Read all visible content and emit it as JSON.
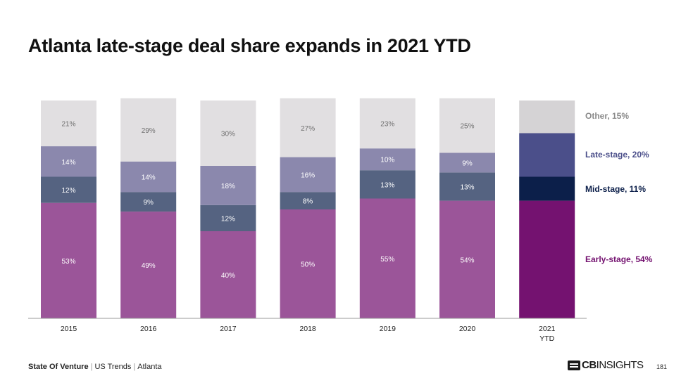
{
  "title": "Atlanta late-stage deal share expands in 2021 YTD",
  "chart_data": {
    "type": "bar",
    "stacked": true,
    "percent": true,
    "categories": [
      [
        "2015"
      ],
      [
        "2016"
      ],
      [
        "2017"
      ],
      [
        "2018"
      ],
      [
        "2019"
      ],
      [
        "2020"
      ],
      [
        "2021",
        "YTD"
      ]
    ],
    "series": [
      {
        "name": "Early-stage",
        "values": [
          53,
          49,
          40,
          50,
          55,
          54,
          54
        ],
        "color": "#9b5599",
        "highlight_color": "#741270"
      },
      {
        "name": "Mid-stage",
        "values": [
          12,
          9,
          12,
          8,
          13,
          13,
          11
        ],
        "color": "#556381",
        "highlight_color": "#0c1f4a"
      },
      {
        "name": "Late-stage",
        "values": [
          14,
          14,
          18,
          16,
          10,
          9,
          20
        ],
        "color": "#8b88ad",
        "highlight_color": "#4b4f8a"
      },
      {
        "name": "Other",
        "values": [
          21,
          29,
          30,
          27,
          23,
          25,
          15
        ],
        "color": "#e1dfe1",
        "highlight_color": "#d5d3d5"
      }
    ],
    "bar_labels": [
      [
        "53%",
        "49%",
        "40%",
        "50%",
        "55%",
        "54%",
        ""
      ],
      [
        "12%",
        "9%",
        "12%",
        "8%",
        "13%",
        "13%",
        ""
      ],
      [
        "14%",
        "14%",
        "18%",
        "16%",
        "10%",
        "9%",
        ""
      ],
      [
        "21%",
        "29%",
        "30%",
        "27%",
        "23%",
        "25%",
        ""
      ]
    ],
    "highlighted_index": 6,
    "legend": [
      {
        "label": "Other, 15%",
        "color": "#8a8a8a"
      },
      {
        "label": "Late-stage, 20%",
        "color": "#4b4f8a"
      },
      {
        "label": "Mid-stage, 11%",
        "color": "#0c1f4a"
      },
      {
        "label": "Early-stage, 54%",
        "color": "#741270"
      }
    ],
    "xlabel": "",
    "ylabel": "",
    "ylim": [
      0,
      100
    ],
    "grid": false
  },
  "footer": {
    "report": "State Of Venture",
    "section": "US Trends",
    "region": "Atlanta"
  },
  "logo": {
    "brand_bold": "CB",
    "brand_rest": "INSIGHTS"
  },
  "page_number": "181"
}
